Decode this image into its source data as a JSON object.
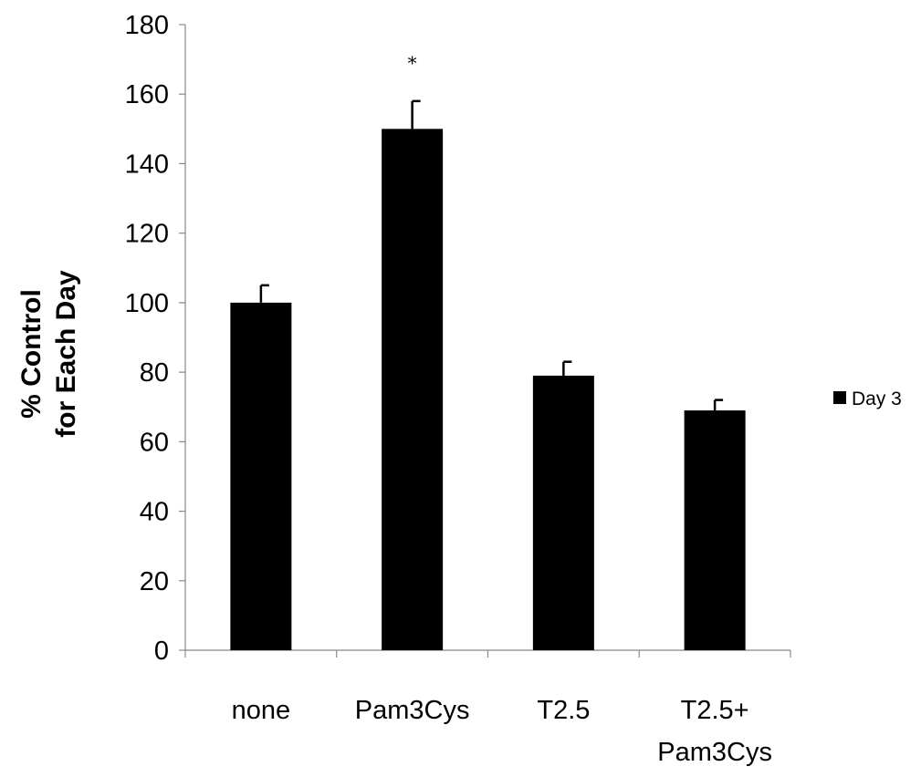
{
  "chart_data": {
    "type": "bar",
    "title": "",
    "xlabel": "",
    "ylabel": [
      "% Control",
      "for Each Day"
    ],
    "ylim": [
      0,
      180
    ],
    "ytick_step": 20,
    "yticks": [
      "0",
      "20",
      "40",
      "60",
      "80",
      "100",
      "120",
      "140",
      "160",
      "180"
    ],
    "categories": [
      [
        "none"
      ],
      [
        "Pam3Cys"
      ],
      [
        "T2.5"
      ],
      [
        "T2.5+",
        "Pam3Cys"
      ]
    ],
    "series": [
      {
        "name": "Day 3",
        "color": "#000000",
        "values": [
          100,
          150,
          79,
          69
        ],
        "errors": [
          5,
          8,
          4,
          3
        ]
      }
    ],
    "annotations": [
      {
        "category_index": 1,
        "text": "*"
      }
    ],
    "legend_position": "right",
    "grid": false
  }
}
